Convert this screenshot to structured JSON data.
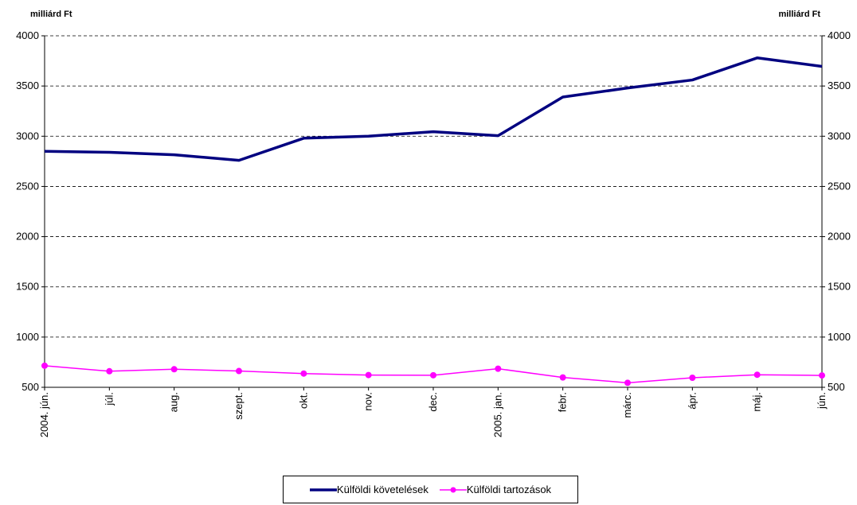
{
  "chart_data": {
    "type": "line",
    "left_axis_label": "milliárd Ft",
    "right_axis_label": "milliárd Ft",
    "ylim": [
      500,
      4000
    ],
    "yticks": [
      500,
      1000,
      1500,
      2000,
      2500,
      3000,
      3500,
      4000
    ],
    "grid": "horizontal dashed",
    "legend_position": "bottom",
    "categories": [
      "2004. jún.",
      "júl.",
      "aug.",
      "szept.",
      "okt.",
      "nov.",
      "dec.",
      "2005. jan.",
      "febr.",
      "márc.",
      "ápr.",
      "máj.",
      "jún."
    ],
    "series": [
      {
        "name": "Külföldi követelések",
        "color": "#000080",
        "marker": "none",
        "values": [
          2850,
          2840,
          2815,
          2760,
          2980,
          3000,
          3045,
          3005,
          3390,
          3480,
          3560,
          3780,
          3695
        ]
      },
      {
        "name": "Külföldi tartozások",
        "color": "#ff00ff",
        "marker": "circle",
        "values": [
          715,
          660,
          680,
          662,
          637,
          622,
          620,
          685,
          598,
          545,
          595,
          625,
          618
        ]
      }
    ]
  }
}
